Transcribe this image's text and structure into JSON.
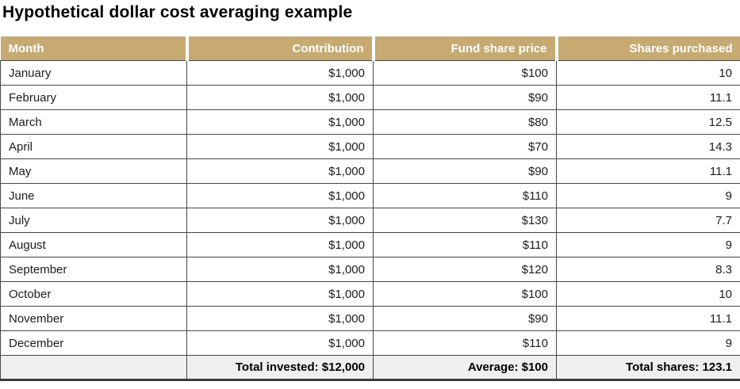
{
  "title": "Hypothetical dollar cost averaging example",
  "chart_data": {
    "type": "table",
    "columns": [
      "Month",
      "Contribution",
      "Fund share price",
      "Shares purchased"
    ],
    "rows": [
      [
        "January",
        "$1,000",
        "$100",
        "10"
      ],
      [
        "February",
        "$1,000",
        "$90",
        "11.1"
      ],
      [
        "March",
        "$1,000",
        "$80",
        "12.5"
      ],
      [
        "April",
        "$1,000",
        "$70",
        "14.3"
      ],
      [
        "May",
        "$1,000",
        "$90",
        "11.1"
      ],
      [
        "June",
        "$1,000",
        "$110",
        "9"
      ],
      [
        "July",
        "$1,000",
        "$130",
        "7.7"
      ],
      [
        "August",
        "$1,000",
        "$110",
        "9"
      ],
      [
        "September",
        "$1,000",
        "$120",
        "8.3"
      ],
      [
        "October",
        "$1,000",
        "$100",
        "10"
      ],
      [
        "November",
        "$1,000",
        "$90",
        "11.1"
      ],
      [
        "December",
        "$1,000",
        "$110",
        "9"
      ]
    ],
    "footer": [
      "",
      "Total invested: $12,000",
      "Average: $100",
      "Total shares: 123.1"
    ]
  },
  "colors": {
    "header_bg": "#c6aa72",
    "header_text": "#ffffff",
    "footer_bg": "#efefef",
    "border": "#474747"
  }
}
